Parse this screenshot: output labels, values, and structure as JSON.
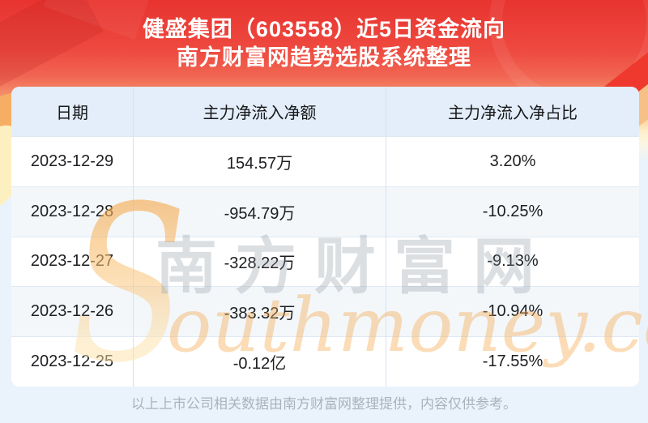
{
  "header": {
    "title_line1": "健盛集团（603558）近5日资金流向",
    "title_line2": "南方财富网趋势选股系统整理"
  },
  "chart_data": {
    "type": "table",
    "title": "健盛集团（603558）近5日资金流向",
    "subtitle": "南方财富网趋势选股系统整理",
    "columns": [
      "日期",
      "主力净流入净额",
      "主力净流入净占比"
    ],
    "rows": [
      [
        "2023-12-29",
        "154.57万",
        "3.20%"
      ],
      [
        "2023-12-28",
        "-954.79万",
        "-10.25%"
      ],
      [
        "2023-12-27",
        "-328.22万",
        "-9.13%"
      ],
      [
        "2023-12-26",
        "-383.32万",
        "-10.94%"
      ],
      [
        "2023-12-25",
        "-0.12亿",
        "-17.55%"
      ]
    ],
    "values_numeric": {
      "dates": [
        "2023-12-29",
        "2023-12-28",
        "2023-12-27",
        "2023-12-26",
        "2023-12-25"
      ],
      "main_net_inflow_wan": [
        154.57,
        -954.79,
        -328.22,
        -383.32,
        -1200
      ],
      "main_net_inflow_ratio_pct": [
        3.2,
        -10.25,
        -9.13,
        -10.94,
        -17.55
      ]
    },
    "layout": {
      "row_striping": true,
      "all_cells_centered": true,
      "grid": "light-blue dividers"
    }
  },
  "watermark": {
    "initial": "S",
    "chars": [
      "南",
      "方",
      "财",
      "富",
      "网"
    ],
    "script": "outhmoney.com"
  },
  "footer": {
    "disclaimer": "以上上市公司相关数据由南方财富网整理提供，内容仅供参考。"
  },
  "colors": {
    "banner_red_top": "#e8332f",
    "banner_red_mid": "#f16552",
    "banner_orange": "#f7af7c",
    "banner_cream": "#fdeec9",
    "page_bg": "#eaf3fb",
    "table_header_bg": "#e3eefa",
    "row_bg": "#ffffff",
    "row_alt_bg": "#f3f7fa",
    "divider": "#d5e2f1",
    "cell_text": "#1c1e21",
    "title_text": "#ffffff",
    "footer_text": "#aab3bb",
    "watermark_orange": "#f6a74a",
    "watermark_gray": "#8c96a0"
  }
}
